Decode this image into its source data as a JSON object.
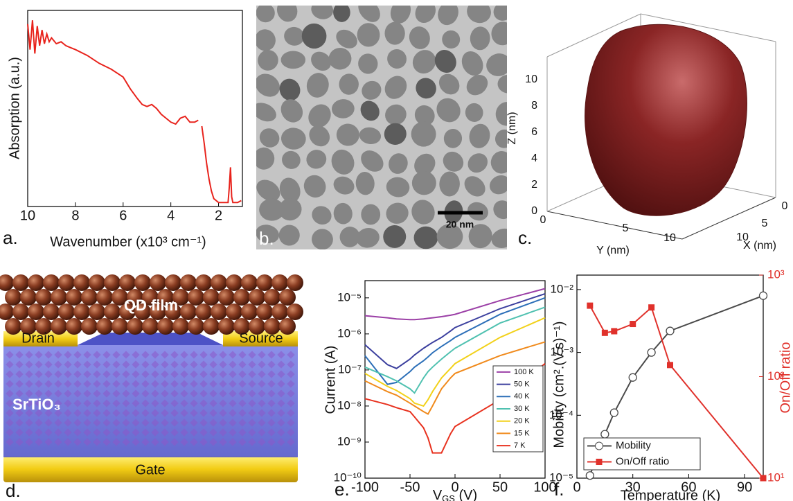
{
  "chart_data": [
    {
      "type": "line",
      "panel_label": "a.",
      "x_label": "Wavenumber (x10³ cm⁻¹)",
      "y_label": "Absorption (a.u.)",
      "xlim": [
        10,
        1
      ],
      "xticks": [
        10,
        8,
        6,
        4,
        2
      ],
      "ylim": [
        0,
        1
      ],
      "color": "#e8231c",
      "x": [
        10,
        9.9,
        9.8,
        9.7,
        9.6,
        9.5,
        9.4,
        9.3,
        9.2,
        9.1,
        9,
        8.8,
        8.6,
        8.4,
        8.2,
        8,
        7.5,
        7,
        6.5,
        6,
        5.7,
        5.4,
        5.2,
        5,
        4.8,
        4.6,
        4.4,
        4.2,
        4,
        3.8,
        3.6,
        3.4,
        3.2,
        3,
        2.85,
        2.75,
        2.7,
        2.6,
        2.5,
        2.4,
        2.3,
        2.2,
        2,
        1.8,
        1.6,
        1.55,
        1.5,
        1.45,
        1.4,
        1.2,
        1.05
      ],
      "values": [
        0.93,
        0.8,
        0.95,
        0.78,
        0.92,
        0.82,
        0.9,
        0.83,
        0.88,
        0.84,
        0.86,
        0.83,
        0.84,
        0.82,
        0.81,
        0.8,
        0.77,
        0.73,
        0.7,
        0.66,
        0.6,
        0.55,
        0.52,
        0.51,
        0.52,
        0.5,
        0.47,
        0.45,
        0.43,
        0.42,
        0.45,
        0.46,
        0.43,
        0.43,
        0.44,
        null,
        0.41,
        0.32,
        0.22,
        0.14,
        0.08,
        0.04,
        0.02,
        0.02,
        0.02,
        0.1,
        0.2,
        0.05,
        0.02,
        0.02,
        0.03
      ]
    },
    {
      "type": "line",
      "panel_label": "e.",
      "x_label": [
        "V",
        "GS",
        " (V)"
      ],
      "y_label": "Current (A)",
      "log_scale": true,
      "xlim": [
        -100,
        100
      ],
      "xticks": [
        -100,
        -50,
        0,
        50,
        100
      ],
      "ylim": [
        1e-10,
        3e-05
      ],
      "yticks": [
        {
          "value": 1e-10,
          "label": "10⁻¹⁰"
        },
        {
          "value": 1e-09,
          "label": "10⁻⁹"
        },
        {
          "value": 1e-08,
          "label": "10⁻⁸"
        },
        {
          "value": 1e-07,
          "label": "10⁻⁷"
        },
        {
          "value": 1e-06,
          "label": "10⁻⁶"
        },
        {
          "value": 1e-05,
          "label": "10⁻⁵"
        }
      ],
      "legend": "right",
      "x": [
        -100,
        -75,
        -65,
        -50,
        -45,
        -35,
        -30,
        -25,
        -15,
        -5,
        0,
        50,
        100
      ],
      "series": [
        {
          "name": "100 K",
          "color": "#9b3fa6",
          "values": [
            3.2e-06,
            2.8e-06,
            2.6e-06,
            2.5e-06,
            2.5e-06,
            2.6e-06,
            2.7e-06,
            2.8e-06,
            3e-06,
            3.3e-06,
            3.5e-06,
            8.4e-06,
            1.8e-05
          ]
        },
        {
          "name": "50 K",
          "color": "#3b3f9e",
          "values": [
            5e-07,
            1.4e-07,
            1.1e-07,
            2e-07,
            2.6e-07,
            4e-07,
            4.8e-07,
            5.8e-07,
            8e-07,
            1.2e-06,
            1.5e-06,
            5e-06,
            1.3e-05
          ]
        },
        {
          "name": "40 K",
          "color": "#2c6fb8",
          "values": [
            2.5e-07,
            4e-08,
            4.5e-08,
            9e-08,
            1.2e-07,
            1.8e-07,
            2.3e-07,
            3e-07,
            4.5e-07,
            6.5e-07,
            8e-07,
            3.5e-06,
            1e-05
          ]
        },
        {
          "name": "30 K",
          "color": "#4fc1b0",
          "values": [
            1.2e-07,
            6.5e-08,
            5e-08,
            3e-08,
            2.3e-08,
            6e-08,
            9e-08,
            1.2e-07,
            2e-07,
            3.2e-07,
            4e-07,
            2e-06,
            5.5e-06
          ]
        },
        {
          "name": "20 K",
          "color": "#f2d11a",
          "values": [
            8e-08,
            3.5e-08,
            2.7e-08,
            1.6e-08,
            1.2e-08,
            1e-08,
            1.5e-08,
            2.5e-08,
            6e-08,
            1.1e-07,
            1.5e-07,
            8e-07,
            2.8e-06
          ]
        },
        {
          "name": "15 K",
          "color": "#f08a1c",
          "values": [
            5e-08,
            2.5e-08,
            2e-08,
            1.2e-08,
            1e-08,
            7e-09,
            6e-09,
            1e-08,
            3e-08,
            6e-08,
            8e-08,
            2.5e-07,
            6e-07
          ]
        },
        {
          "name": "7 K",
          "color": "#e8321f",
          "values": [
            1.6e-08,
            1.1e-08,
            9e-09,
            7e-09,
            5e-09,
            2.5e-09,
            1.3e-09,
            5e-10,
            5e-10,
            1.7e-09,
            2.7e-09,
            1.5e-08,
            1.5e-07
          ]
        }
      ]
    },
    {
      "type": "line",
      "panel_label": "f.",
      "x_label": "Temperature (K)",
      "y_label": "Mobility (cm².(V.s)⁻¹)",
      "y2_label": "On/Off ratio",
      "y2_color": "#e0312b",
      "log_scale": true,
      "legend": "lower left",
      "xlim": [
        0,
        100
      ],
      "xticks": [
        0,
        30,
        60,
        90
      ],
      "ylim": [
        1e-05,
        0.017
      ],
      "yticks": [
        {
          "value": 1e-05,
          "label": "10⁻⁵"
        },
        {
          "value": 0.0001,
          "label": "10⁻⁴"
        },
        {
          "value": 0.001,
          "label": "10⁻³"
        },
        {
          "value": 0.01,
          "label": "10⁻²"
        }
      ],
      "y2lim": [
        10,
        1000
      ],
      "y2ticks": [
        {
          "value": 10,
          "label": "10¹"
        },
        {
          "value": 100,
          "label": "10²"
        },
        {
          "value": 1000,
          "label": "10³"
        }
      ],
      "x": [
        7,
        15,
        20,
        30,
        40,
        50,
        100
      ],
      "series": [
        {
          "name": "Mobility",
          "color": "#4a4a4a",
          "marker": "circle",
          "values": [
            1.1e-05,
            5e-05,
            0.00011,
            0.0004,
            0.001,
            0.0022,
            0.008
          ]
        },
        {
          "name": "On/Off ratio",
          "color": "#e0312b",
          "marker": "square",
          "axis": "y2",
          "values": [
            500,
            270,
            280,
            330,
            480,
            130,
            10
          ]
        }
      ]
    }
  ],
  "panel_b": {
    "label": "b.",
    "scale_bar": "20 nm"
  },
  "panel_c": {
    "label": "c.",
    "z_label": "Z (nm)",
    "y_label": "Y (nm)",
    "x_label": "X (nm)",
    "z_ticks": [
      "0",
      "2",
      "4",
      "6",
      "8",
      "10"
    ],
    "y_ticks": [
      "0",
      "5",
      "10"
    ],
    "x_ticks": [
      "0",
      "5",
      "10"
    ]
  },
  "panel_d": {
    "label": "d.",
    "film": "QD film",
    "drain": "Drain",
    "source": "Source",
    "substrate": "SrTiO₃",
    "gate": "Gate"
  }
}
